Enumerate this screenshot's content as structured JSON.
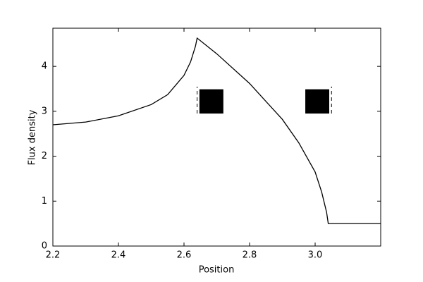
{
  "chart_data": {
    "type": "line",
    "xlabel": "Position",
    "ylabel": "Flux density",
    "x": [
      2.2,
      2.3,
      2.4,
      2.5,
      2.55,
      2.6,
      2.62,
      2.635,
      2.64,
      2.7,
      2.8,
      2.9,
      2.95,
      3.0,
      3.02,
      3.035,
      3.04,
      3.1,
      3.2
    ],
    "y": [
      2.7,
      2.76,
      2.9,
      3.15,
      3.37,
      3.8,
      4.1,
      4.45,
      4.63,
      4.28,
      3.62,
      2.82,
      2.3,
      1.65,
      1.2,
      0.75,
      0.5,
      0.5,
      0.5
    ],
    "color": "#000000",
    "rectangles": [
      {
        "x": [
          2.647,
          2.72
        ],
        "y": [
          2.95,
          3.49
        ],
        "edge_x": 2.64,
        "edge_y": [
          2.95,
          3.55
        ]
      },
      {
        "x": [
          2.97,
          3.043
        ],
        "y": [
          2.95,
          3.49
        ],
        "edge_x": 3.05,
        "edge_y": [
          2.95,
          3.55
        ]
      }
    ],
    "xlim": [
      2.2,
      3.2
    ],
    "ylim": [
      0,
      4.85
    ],
    "xticks": [
      2.2,
      2.4,
      2.6,
      2.8,
      {
        "value": 3.0,
        "label": "3.0"
      }
    ],
    "yticks": [
      0,
      1,
      2,
      3,
      4
    ]
  }
}
